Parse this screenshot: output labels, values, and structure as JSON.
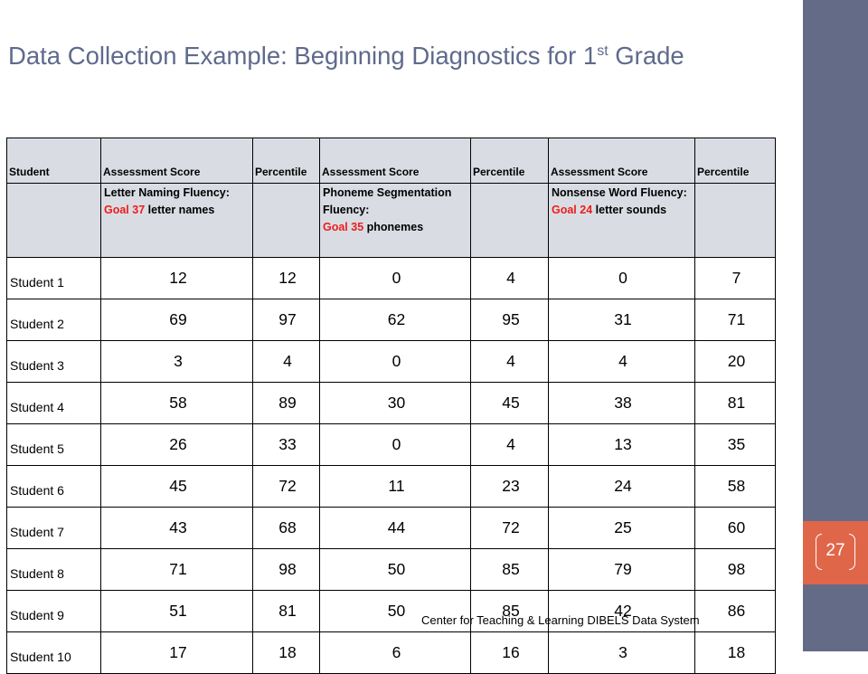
{
  "slide": {
    "title_main": "Data Collection Example: Beginning Diagnostics for 1",
    "title_sup": "st",
    "title_end": " Grade",
    "footer": "Center for Teaching & Learning DIBELS Data System",
    "page_number": "27"
  },
  "table": {
    "headers": [
      "Student",
      "Assessment Score",
      "Percentile",
      "Assessment Score",
      "Percentile",
      "Assessment Score",
      "Percentile"
    ],
    "subheaders": [
      {
        "label": "Letter Naming Fluency:",
        "goal_red": "Goal 37",
        "goal_rest": " letter names"
      },
      {
        "label": "Phoneme Segmentation Fluency:",
        "goal_red": "Goal 35",
        "goal_rest": " phonemes"
      },
      {
        "label": "Nonsense Word Fluency:",
        "goal_red": "Goal 24",
        "goal_rest": " letter sounds"
      }
    ],
    "rows": [
      {
        "student": "Student 1",
        "values": [
          "12",
          "12",
          "0",
          "4",
          "0",
          "7"
        ]
      },
      {
        "student": "Student 2",
        "values": [
          "69",
          "97",
          "62",
          "95",
          "31",
          "71"
        ]
      },
      {
        "student": "Student 3",
        "values": [
          "3",
          "4",
          "0",
          "4",
          "4",
          "20"
        ]
      },
      {
        "student": "Student 4",
        "values": [
          "58",
          "89",
          "30",
          "45",
          "38",
          "81"
        ]
      },
      {
        "student": "Student 5",
        "values": [
          "26",
          "33",
          "0",
          "4",
          "13",
          "35"
        ]
      },
      {
        "student": "Student 6",
        "values": [
          "45",
          "72",
          "11",
          "23",
          "24",
          "58"
        ]
      },
      {
        "student": "Student 7",
        "values": [
          "43",
          "68",
          "44",
          "72",
          "25",
          "60"
        ]
      },
      {
        "student": "Student 8",
        "values": [
          "71",
          "98",
          "50",
          "85",
          "79",
          "98"
        ]
      },
      {
        "student": "Student 9",
        "values": [
          "51",
          "81",
          "50",
          "85",
          "42",
          "86"
        ]
      },
      {
        "student": "Student 10",
        "values": [
          "17",
          "18",
          "6",
          "16",
          "3",
          "18"
        ]
      }
    ]
  }
}
